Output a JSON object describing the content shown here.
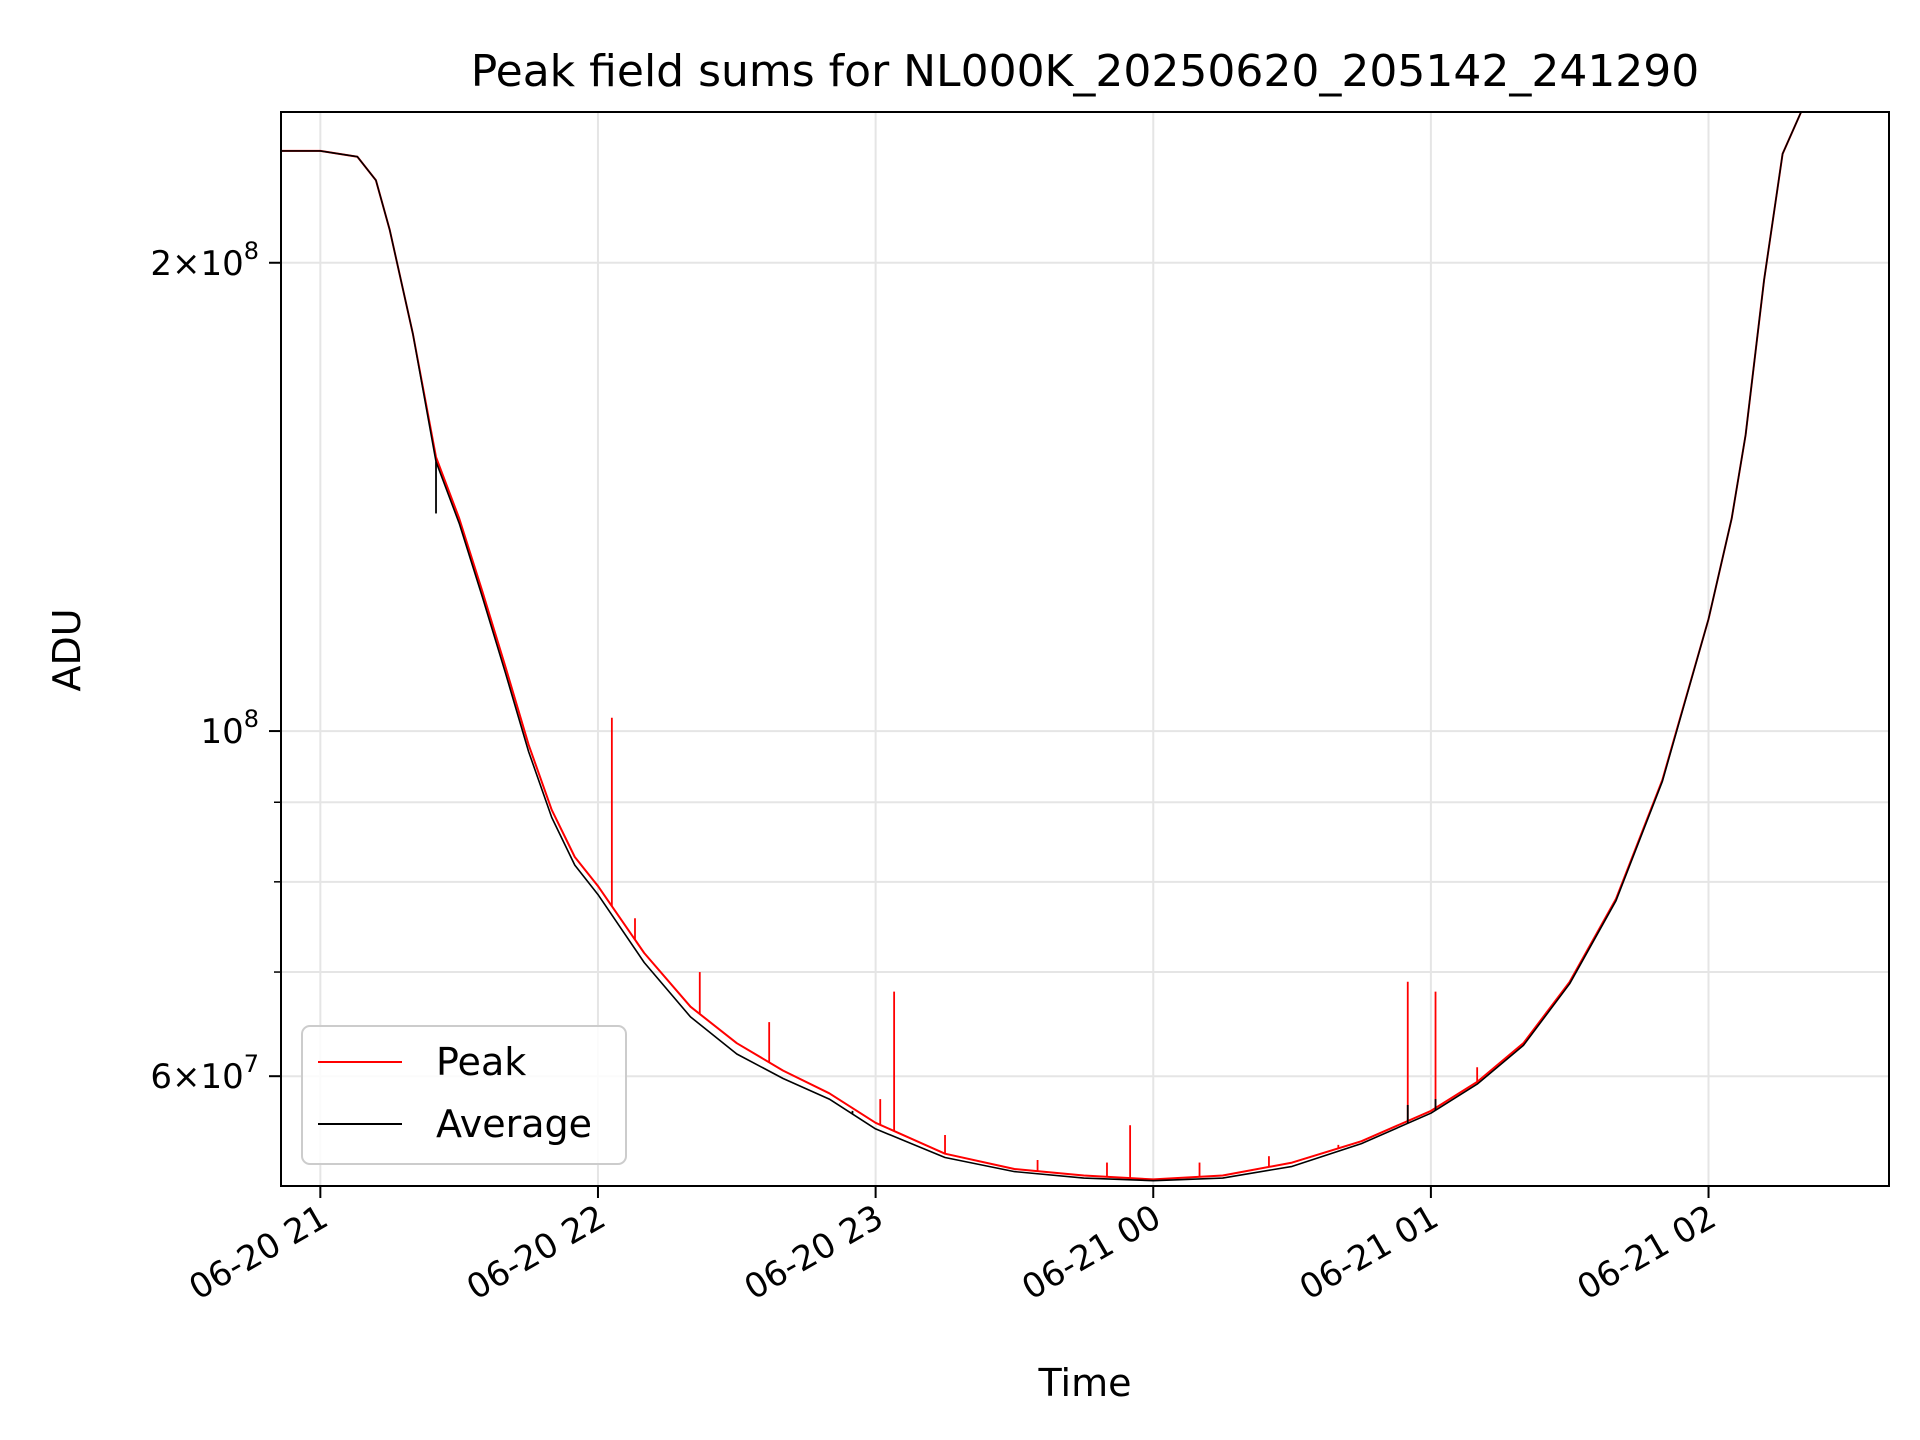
{
  "chart_data": {
    "type": "line",
    "title": "Peak field sums for NL000K_20250620_205142_241290",
    "xlabel": "Time",
    "ylabel": "ADU",
    "yscale": "log",
    "ylim": [
      51000000,
      250000000
    ],
    "xlim": [
      "06-20 20:51:30",
      "06-21 02:39:00"
    ],
    "grid": true,
    "legend": "lower-left",
    "x_ticks": [
      {
        "t": "06-20 21:00",
        "label": "06-20 21"
      },
      {
        "t": "06-20 22:00",
        "label": "06-20 22"
      },
      {
        "t": "06-20 23:00",
        "label": "06-20 23"
      },
      {
        "t": "06-21 00:00",
        "label": "06-21 00"
      },
      {
        "t": "06-21 01:00",
        "label": "06-21 01"
      },
      {
        "t": "06-21 02:00",
        "label": "06-21 02"
      }
    ],
    "y_ticks_major": [
      {
        "value": 60000000,
        "mant": "6",
        "cross": "×",
        "base": "10",
        "exp": "7"
      },
      {
        "value": 100000000,
        "mant": "",
        "cross": "",
        "base": "10",
        "exp": "8"
      },
      {
        "value": 200000000,
        "mant": "2",
        "cross": "×",
        "base": "10",
        "exp": "8"
      }
    ],
    "y_ticks_minor": [
      70000000,
      80000000,
      90000000,
      300000000
    ],
    "x": [
      "06-20 20:51:30",
      "06-20 21:00",
      "06-20 21:08",
      "06-20 21:12",
      "06-20 21:15",
      "06-20 21:20",
      "06-20 21:25",
      "06-20 21:30",
      "06-20 21:35",
      "06-20 21:40",
      "06-20 21:45",
      "06-20 21:50",
      "06-20 21:55",
      "06-20 22:00",
      "06-20 22:10",
      "06-20 22:20",
      "06-20 22:30",
      "06-20 22:40",
      "06-20 22:50",
      "06-20 23:00",
      "06-20 23:15",
      "06-20 23:30",
      "06-20 23:45",
      "06-21 00:00",
      "06-21 00:15",
      "06-21 00:30",
      "06-21 00:45",
      "06-21 01:00",
      "06-21 01:10",
      "06-21 01:20",
      "06-21 01:30",
      "06-21 01:40",
      "06-21 01:50",
      "06-21 02:00",
      "06-21 02:05",
      "06-21 02:08",
      "06-21 02:12",
      "06-21 02:16",
      "06-21 02:20",
      "06-21 02:39"
    ],
    "series": [
      {
        "name": "Peak",
        "color": "#ff0000",
        "values": [
          236000000,
          236000000,
          234000000,
          226000000,
          210000000,
          180000000,
          150000000,
          137000000,
          123000000,
          110000000,
          98000000,
          89000000,
          83000000,
          79500000,
          72000000,
          66500000,
          63000000,
          60500000,
          58500000,
          56000000,
          53500000,
          52300000,
          51800000,
          51500000,
          51800000,
          52800000,
          54500000,
          57000000,
          59500000,
          63000000,
          69000000,
          78000000,
          93000000,
          118000000,
          137000000,
          155000000,
          195000000,
          235000000,
          250000000,
          250000000
        ],
        "spikes": [
          {
            "t": "06-20 22:03",
            "value": 102000000
          },
          {
            "t": "06-20 22:08",
            "value": 75800000
          },
          {
            "t": "06-20 22:22",
            "value": 70000000
          },
          {
            "t": "06-20 22:37",
            "value": 65000000
          },
          {
            "t": "06-20 23:01",
            "value": 58000000
          },
          {
            "t": "06-20 23:04",
            "value": 68000000
          },
          {
            "t": "06-20 23:15",
            "value": 55000000
          },
          {
            "t": "06-20 23:35",
            "value": 53000000
          },
          {
            "t": "06-20 23:50",
            "value": 52800000
          },
          {
            "t": "06-20 23:55",
            "value": 55800000
          },
          {
            "t": "06-21 00:10",
            "value": 52800000
          },
          {
            "t": "06-21 00:25",
            "value": 53300000
          },
          {
            "t": "06-21 00:40",
            "value": 54200000
          },
          {
            "t": "06-21 00:55",
            "value": 69000000
          },
          {
            "t": "06-21 01:01",
            "value": 68000000
          },
          {
            "t": "06-21 01:10",
            "value": 60800000
          },
          {
            "t": "06-21 01:25",
            "value": 66000000
          },
          {
            "t": "06-21 01:40",
            "value": 78000000
          }
        ]
      },
      {
        "name": "Average",
        "color": "#000000",
        "values": [
          236000000,
          236000000,
          234000000,
          226000000,
          210000000,
          180000000,
          149000000,
          136000000,
          122000000,
          109000000,
          97000000,
          88000000,
          82000000,
          78500000,
          71000000,
          65500000,
          62000000,
          59800000,
          58000000,
          55500000,
          53200000,
          52100000,
          51600000,
          51400000,
          51600000,
          52500000,
          54300000,
          56800000,
          59300000,
          62800000,
          68800000,
          77800000,
          92800000,
          118000000,
          137000000,
          155000000,
          195000000,
          235000000,
          250000000,
          250000000
        ],
        "spikes": [
          {
            "t": "06-20 21:25",
            "value": 138000000
          },
          {
            "t": "06-20 22:55",
            "value": 57000000
          },
          {
            "t": "06-21 00:55",
            "value": 57500000
          },
          {
            "t": "06-21 01:01",
            "value": 58000000
          }
        ]
      }
    ]
  }
}
